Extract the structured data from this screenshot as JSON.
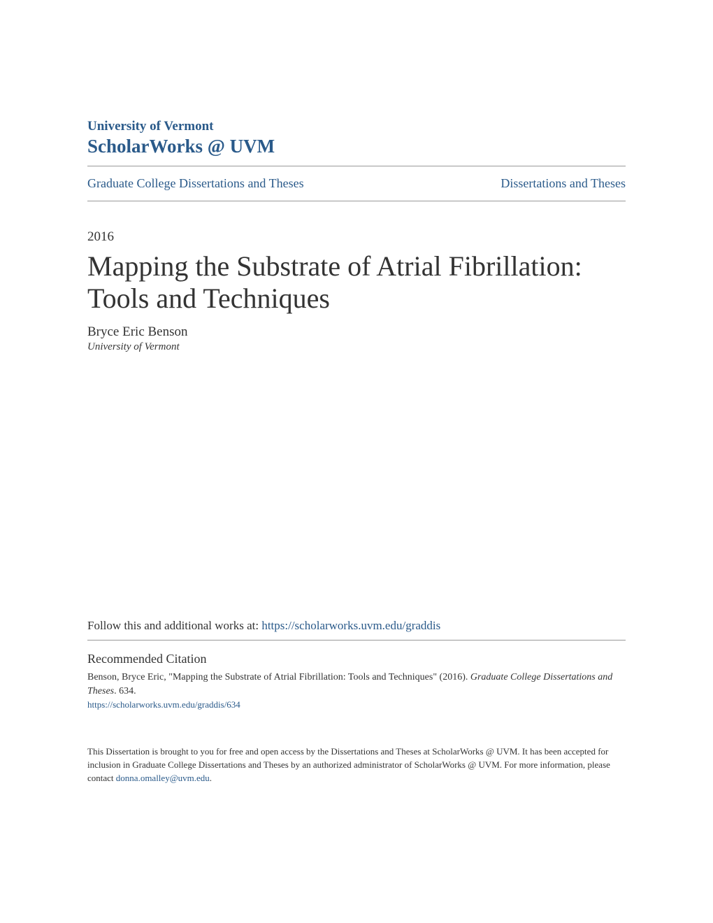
{
  "header": {
    "institution": "University of Vermont",
    "repository": "ScholarWorks @ UVM"
  },
  "breadcrumb": {
    "left": "Graduate College Dissertations and Theses",
    "right": "Dissertations and Theses"
  },
  "document": {
    "year": "2016",
    "title": "Mapping the Substrate of Atrial Fibrillation: Tools and Techniques",
    "author": "Bryce Eric Benson",
    "affiliation": "University of Vermont"
  },
  "follow": {
    "prefix": "Follow this and additional works at: ",
    "link_text": "https://scholarworks.uvm.edu/graddis"
  },
  "citation": {
    "heading": "Recommended Citation",
    "text_part1": "Benson, Bryce Eric, \"Mapping the Substrate of Atrial Fibrillation: Tools and Techniques\" (2016). ",
    "text_italic": "Graduate College Dissertations and Theses",
    "text_part2": ". 634.",
    "link": "https://scholarworks.uvm.edu/graddis/634"
  },
  "footer": {
    "text_part1": "This Dissertation is brought to you for free and open access by the Dissertations and Theses at ScholarWorks @ UVM. It has been accepted for inclusion in Graduate College Dissertations and Theses by an authorized administrator of ScholarWorks @ UVM. For more information, please contact ",
    "email": "donna.omalley@uvm.edu",
    "text_part2": "."
  },
  "colors": {
    "link_color": "#2a5a8a",
    "text_color": "#333333",
    "divider_color": "#999999",
    "background": "#ffffff"
  }
}
